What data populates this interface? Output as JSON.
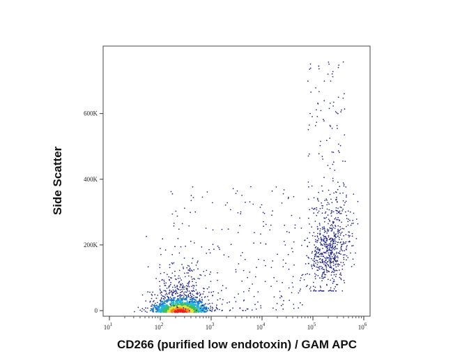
{
  "chart_data": {
    "type": "scatter",
    "subtype": "flow-cytometry-density-dot-plot",
    "xlabel": "CD266 (purified low endotoxin) / GAM APC",
    "ylabel": "Side Scatter",
    "x_scale": "log",
    "xlim": [
      10,
      1000000
    ],
    "ylim": [
      -20000,
      780000
    ],
    "x_ticks": [
      {
        "value": 10,
        "base": "10",
        "exp": "1"
      },
      {
        "value": 100,
        "base": "10",
        "exp": "2"
      },
      {
        "value": 1000,
        "base": "10",
        "exp": "3"
      },
      {
        "value": 10000,
        "base": "10",
        "exp": "4"
      },
      {
        "value": 100000,
        "base": "10",
        "exp": "5"
      },
      {
        "value": 1000000,
        "base": "10",
        "exp": "6"
      }
    ],
    "y_ticks": [
      {
        "value": 0,
        "label": "0"
      },
      {
        "value": 200000,
        "label": "200K"
      },
      {
        "value": 400000,
        "label": "400K"
      },
      {
        "value": 600000,
        "label": "600K"
      }
    ],
    "grid": false,
    "legend": "none",
    "density_colors": [
      "#2b2f8f",
      "#1f7fd0",
      "#22b8d8",
      "#3fbf5a",
      "#e8e23a",
      "#f08a24",
      "#e8231c"
    ],
    "populations": [
      {
        "name": "",
        "x_center": 250,
        "y_center": 15000,
        "count": 1100,
        "colored_by_density": true
      },
      {
        "name": "",
        "x_center": 200000,
        "y_center": 190000,
        "count": 650,
        "colored_by_density": false
      }
    ]
  }
}
